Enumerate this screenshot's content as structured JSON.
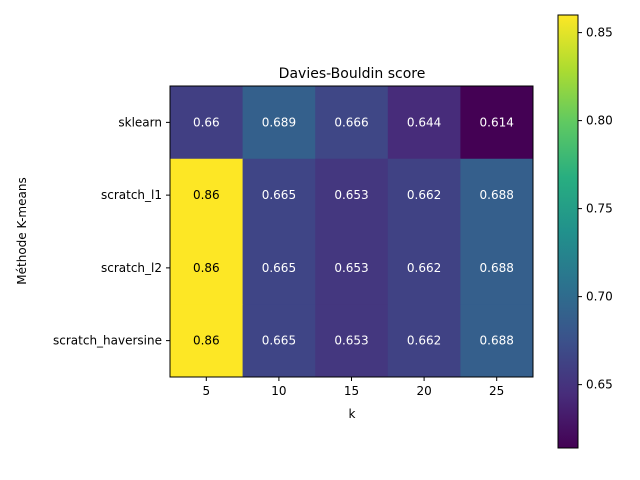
{
  "chart_data": {
    "type": "heatmap",
    "title": "Davies-Bouldin score",
    "xlabel": "k",
    "ylabel": "Méthode K-means",
    "x_categories": [
      "5",
      "10",
      "15",
      "20",
      "25"
    ],
    "y_categories": [
      "sklearn",
      "scratch_l1",
      "scratch_l2",
      "scratch_haversine"
    ],
    "values": [
      [
        0.66,
        0.689,
        0.666,
        0.644,
        0.614
      ],
      [
        0.86,
        0.665,
        0.653,
        0.662,
        0.688
      ],
      [
        0.86,
        0.665,
        0.653,
        0.662,
        0.688
      ],
      [
        0.86,
        0.665,
        0.653,
        0.662,
        0.688
      ]
    ],
    "colormap": "viridis",
    "vmin": 0.614,
    "vmax": 0.86,
    "colorbar_ticks": [
      "0.65",
      "0.70",
      "0.75",
      "0.80",
      "0.85"
    ],
    "annotate_cells": true
  }
}
